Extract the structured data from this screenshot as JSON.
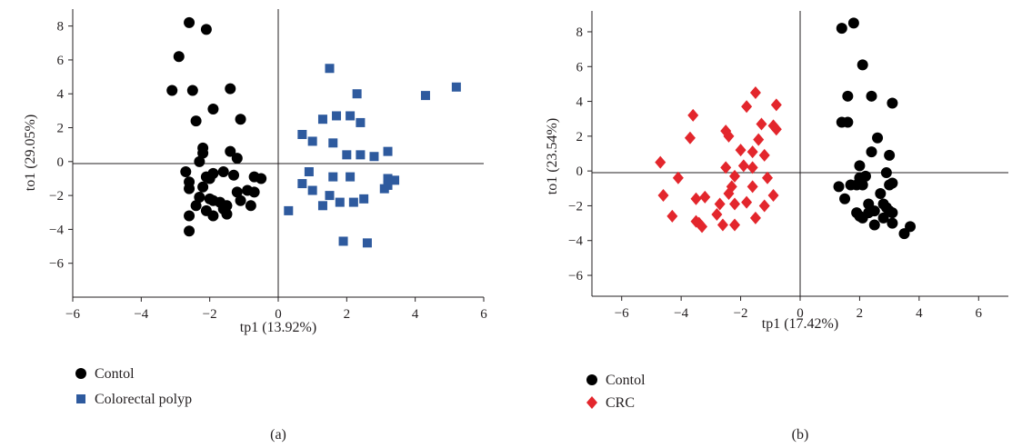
{
  "chart_data": [
    {
      "type": "scatter",
      "panel_label": "(a)",
      "xlabel": "tp1 (13.92%)",
      "ylabel": "to1 (29.05%)",
      "xlim": [
        -6,
        6
      ],
      "ylim": [
        -8,
        9
      ],
      "xticks": [
        -6,
        -4,
        -2,
        0,
        2,
        4,
        6
      ],
      "yticks": [
        -6,
        -4,
        -2,
        0,
        2,
        4,
        6,
        8
      ],
      "grid": false,
      "legend_position": "bottom-left",
      "series": [
        {
          "name": "Contol",
          "marker": "circle",
          "color": "#000000",
          "points": [
            [
              -2.6,
              8.2
            ],
            [
              -2.1,
              7.8
            ],
            [
              -2.9,
              6.2
            ],
            [
              -3.1,
              4.2
            ],
            [
              -2.5,
              4.2
            ],
            [
              -1.4,
              4.3
            ],
            [
              -1.9,
              3.1
            ],
            [
              -2.4,
              2.4
            ],
            [
              -1.1,
              2.5
            ],
            [
              -2.2,
              0.8
            ],
            [
              -2.2,
              0.5
            ],
            [
              -1.4,
              0.6
            ],
            [
              -1.2,
              0.2
            ],
            [
              -2.3,
              0.0
            ],
            [
              -2.7,
              -0.6
            ],
            [
              -2.1,
              -0.9
            ],
            [
              -2.0,
              -1.0
            ],
            [
              -1.9,
              -0.7
            ],
            [
              -1.6,
              -0.6
            ],
            [
              -1.3,
              -0.8
            ],
            [
              -0.7,
              -0.9
            ],
            [
              -0.5,
              -1.0
            ],
            [
              -2.6,
              -1.2
            ],
            [
              -2.2,
              -1.5
            ],
            [
              -2.6,
              -1.6
            ],
            [
              -1.2,
              -1.8
            ],
            [
              -0.9,
              -1.7
            ],
            [
              -0.7,
              -1.8
            ],
            [
              -2.3,
              -2.1
            ],
            [
              -2.0,
              -2.2
            ],
            [
              -1.9,
              -2.3
            ],
            [
              -1.7,
              -2.4
            ],
            [
              -1.5,
              -2.6
            ],
            [
              -1.1,
              -2.3
            ],
            [
              -0.8,
              -2.6
            ],
            [
              -2.4,
              -2.6
            ],
            [
              -2.1,
              -2.9
            ],
            [
              -1.6,
              -2.8
            ],
            [
              -1.9,
              -3.2
            ],
            [
              -1.5,
              -3.1
            ],
            [
              -2.6,
              -3.2
            ],
            [
              -2.6,
              -4.1
            ]
          ]
        },
        {
          "name": "Colorectal polyp",
          "marker": "square",
          "color": "#2e5a9e",
          "points": [
            [
              1.5,
              5.5
            ],
            [
              5.2,
              4.4
            ],
            [
              4.3,
              3.9
            ],
            [
              2.3,
              4.0
            ],
            [
              1.7,
              2.7
            ],
            [
              2.1,
              2.7
            ],
            [
              1.3,
              2.5
            ],
            [
              2.4,
              2.3
            ],
            [
              0.7,
              1.6
            ],
            [
              1.0,
              1.2
            ],
            [
              1.6,
              1.1
            ],
            [
              2.0,
              0.4
            ],
            [
              2.4,
              0.4
            ],
            [
              2.8,
              0.3
            ],
            [
              3.2,
              0.6
            ],
            [
              0.9,
              -0.6
            ],
            [
              1.6,
              -0.9
            ],
            [
              2.1,
              -0.9
            ],
            [
              3.2,
              -1.0
            ],
            [
              3.4,
              -1.1
            ],
            [
              0.7,
              -1.3
            ],
            [
              1.0,
              -1.7
            ],
            [
              1.5,
              -2.0
            ],
            [
              3.1,
              -1.6
            ],
            [
              3.2,
              -1.4
            ],
            [
              1.8,
              -2.4
            ],
            [
              2.2,
              -2.4
            ],
            [
              2.5,
              -2.2
            ],
            [
              1.3,
              -2.6
            ],
            [
              0.3,
              -2.9
            ],
            [
              1.9,
              -4.7
            ],
            [
              2.6,
              -4.8
            ]
          ]
        }
      ]
    },
    {
      "type": "scatter",
      "panel_label": "(b)",
      "xlabel": "tp1 (17.42%)",
      "ylabel": "to1 (23.54%)",
      "xlim": [
        -7,
        7
      ],
      "ylim": [
        -7.2,
        9.2
      ],
      "xticks": [
        -6,
        -4,
        -2,
        0,
        2,
        4,
        6
      ],
      "yticks": [
        -6,
        -4,
        -2,
        0,
        2,
        4,
        6,
        8
      ],
      "grid": false,
      "legend_position": "bottom-left",
      "series": [
        {
          "name": "Contol",
          "marker": "circle",
          "color": "#000000",
          "points": [
            [
              1.8,
              8.5
            ],
            [
              1.4,
              8.2
            ],
            [
              2.1,
              6.1
            ],
            [
              1.6,
              4.3
            ],
            [
              2.4,
              4.3
            ],
            [
              3.1,
              3.9
            ],
            [
              1.4,
              2.8
            ],
            [
              1.6,
              2.8
            ],
            [
              2.6,
              1.9
            ],
            [
              2.4,
              1.1
            ],
            [
              3.0,
              0.9
            ],
            [
              2.0,
              0.3
            ],
            [
              2.0,
              -0.4
            ],
            [
              2.2,
              -0.3
            ],
            [
              2.9,
              -0.1
            ],
            [
              3.0,
              -0.8
            ],
            [
              3.1,
              -0.7
            ],
            [
              1.7,
              -0.8
            ],
            [
              1.9,
              -0.8
            ],
            [
              2.1,
              -0.8
            ],
            [
              1.3,
              -0.9
            ],
            [
              2.7,
              -1.3
            ],
            [
              1.5,
              -1.6
            ],
            [
              2.3,
              -1.9
            ],
            [
              2.8,
              -1.9
            ],
            [
              2.9,
              -2.1
            ],
            [
              2.5,
              -2.3
            ],
            [
              2.3,
              -2.4
            ],
            [
              3.0,
              -2.3
            ],
            [
              3.1,
              -2.4
            ],
            [
              1.9,
              -2.4
            ],
            [
              2.0,
              -2.6
            ],
            [
              2.1,
              -2.7
            ],
            [
              2.5,
              -3.1
            ],
            [
              2.8,
              -2.7
            ],
            [
              3.1,
              -3.0
            ],
            [
              3.5,
              -3.6
            ],
            [
              3.7,
              -3.2
            ]
          ]
        },
        {
          "name": "CRC",
          "marker": "diamond",
          "color": "#e3262c",
          "points": [
            [
              -1.5,
              4.5
            ],
            [
              -0.8,
              3.8
            ],
            [
              -1.8,
              3.7
            ],
            [
              -3.6,
              3.2
            ],
            [
              -1.3,
              2.7
            ],
            [
              -0.9,
              2.6
            ],
            [
              -0.8,
              2.4
            ],
            [
              -2.5,
              2.3
            ],
            [
              -2.4,
              2.0
            ],
            [
              -1.4,
              1.8
            ],
            [
              -3.7,
              1.9
            ],
            [
              -2.0,
              1.2
            ],
            [
              -1.6,
              1.1
            ],
            [
              -1.2,
              0.9
            ],
            [
              -4.7,
              0.5
            ],
            [
              -2.5,
              0.2
            ],
            [
              -1.9,
              0.3
            ],
            [
              -1.6,
              0.2
            ],
            [
              -2.2,
              -0.3
            ],
            [
              -1.1,
              -0.4
            ],
            [
              -4.1,
              -0.4
            ],
            [
              -2.3,
              -0.9
            ],
            [
              -1.6,
              -0.9
            ],
            [
              -4.6,
              -1.4
            ],
            [
              -3.5,
              -1.6
            ],
            [
              -3.2,
              -1.5
            ],
            [
              -2.4,
              -1.3
            ],
            [
              -2.7,
              -1.9
            ],
            [
              -2.2,
              -1.9
            ],
            [
              -1.8,
              -1.8
            ],
            [
              -0.9,
              -1.4
            ],
            [
              -1.2,
              -2.0
            ],
            [
              -4.3,
              -2.6
            ],
            [
              -2.8,
              -2.5
            ],
            [
              -1.5,
              -2.7
            ],
            [
              -3.5,
              -2.9
            ],
            [
              -3.4,
              -3.0
            ],
            [
              -3.3,
              -3.2
            ],
            [
              -2.6,
              -3.1
            ],
            [
              -2.2,
              -3.1
            ]
          ]
        }
      ]
    }
  ]
}
